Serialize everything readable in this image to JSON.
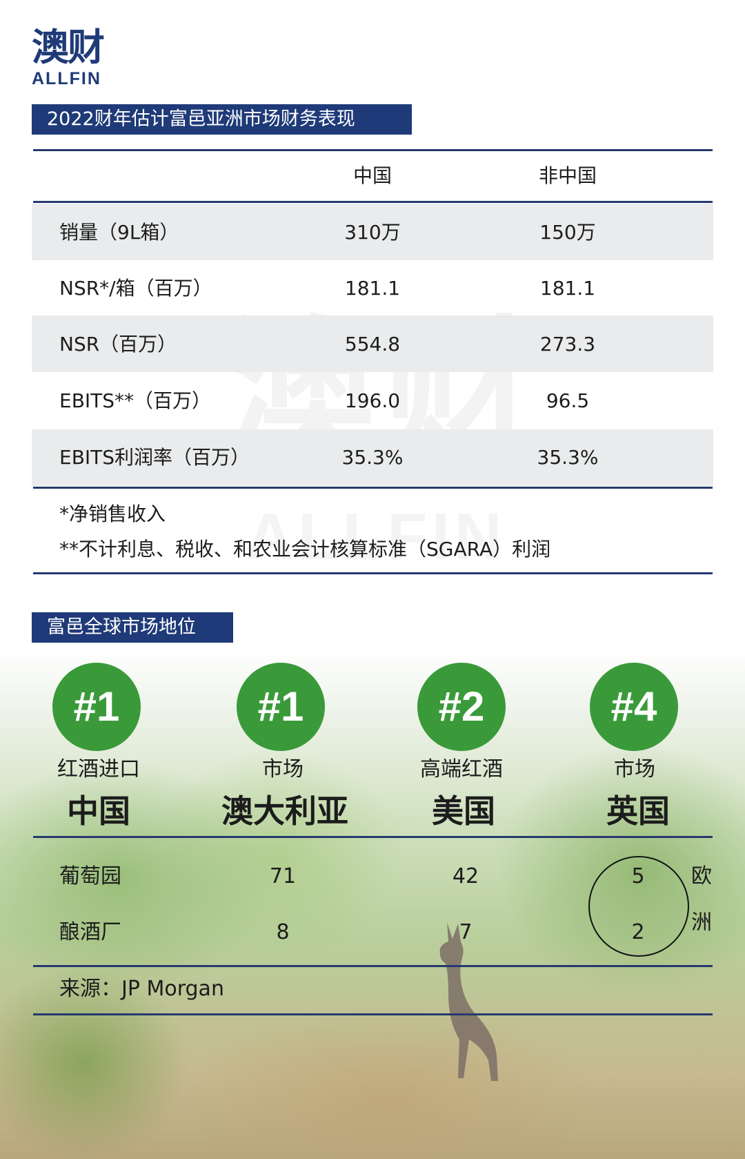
{
  "logo": {
    "cn": "澳财",
    "en": "ALLFIN"
  },
  "watermark": {
    "cn": "澳财",
    "en": "ALLFIN"
  },
  "financial": {
    "title": "2022财年估计富邑亚洲市场财务表现",
    "columns": [
      "",
      "中国",
      "非中国"
    ],
    "rows": [
      {
        "label": "销量（9L箱）",
        "china": "310万",
        "non_china": "150万"
      },
      {
        "label": "NSR*/箱（百万）",
        "china": "181.1",
        "non_china": "181.1"
      },
      {
        "label": "NSR（百万）",
        "china": "554.8",
        "non_china": "273.3"
      },
      {
        "label": "EBITS**（百万）",
        "china": "196.0",
        "non_china": "96.5"
      },
      {
        "label": "EBITS利润率（百万）",
        "china": "35.3%",
        "non_china": "35.3%"
      }
    ],
    "notes": [
      "*净销售收入",
      "**不计利息、税收、和农业会计核算标准（SGARA）利润"
    ]
  },
  "market": {
    "title": "富邑全球市场地位",
    "positions": [
      {
        "rank": "#1",
        "caption": "红酒进口",
        "region": "中国"
      },
      {
        "rank": "#1",
        "caption": "市场",
        "region": "澳大利亚"
      },
      {
        "rank": "#2",
        "caption": "高端红酒",
        "region": "美国"
      },
      {
        "rank": "#4",
        "caption": "市场",
        "region": "英国"
      }
    ],
    "vineyards": {
      "label": "葡萄园",
      "values": [
        "71",
        "42",
        "5"
      ]
    },
    "wineries": {
      "label": "酿酒厂",
      "values": [
        "8",
        "7",
        "2"
      ]
    },
    "europe_label": [
      "欧",
      "洲"
    ],
    "source": "来源：JP Morgan"
  },
  "colors": {
    "navy": "#1f3a78",
    "green": "#3a9a3a",
    "row_shade": "#e9ebec"
  }
}
